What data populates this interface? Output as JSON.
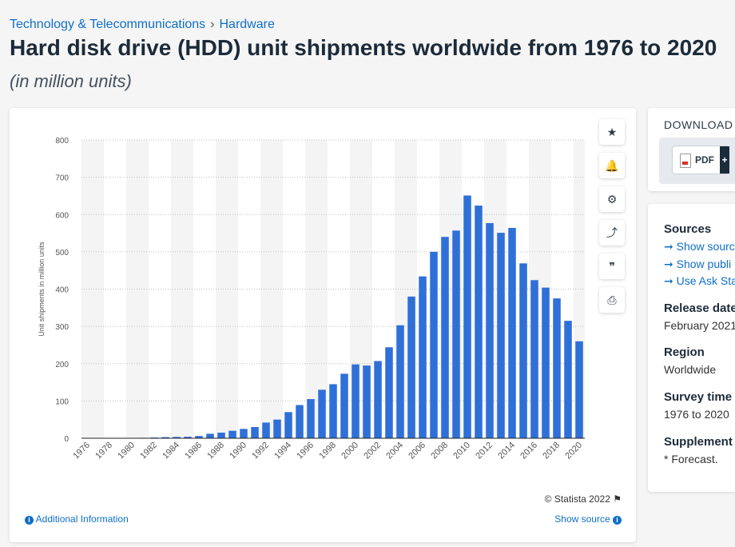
{
  "breadcrumb": {
    "category": "Technology & Telecommunications",
    "separator": "›",
    "subcategory": "Hardware"
  },
  "page_title": "Hard disk drive (HDD) unit shipments worldwide from 1976 to 2020",
  "subtitle": "(in million units)",
  "colors": {
    "bar": "#2f6fd8",
    "link": "#0f6fc6",
    "band": "#f4f4f4",
    "grid": "#bfbfbf"
  },
  "toolbar": [
    {
      "name": "favorite-star-icon",
      "glyph": "★"
    },
    {
      "name": "notification-bell-icon",
      "glyph": "🔔"
    },
    {
      "name": "settings-gear-icon",
      "glyph": "⚙"
    },
    {
      "name": "share-icon",
      "glyph": "⤴"
    },
    {
      "name": "cite-quote-icon",
      "glyph": "❞"
    },
    {
      "name": "print-icon",
      "glyph": "⎙"
    }
  ],
  "credit": "© Statista 2022",
  "additional_info": "Additional Information",
  "show_source": "Show source",
  "download": {
    "heading": "DOWNLOAD",
    "pdf_label": "PDF",
    "plus": "+"
  },
  "sidebar": {
    "sources_heading": "Sources",
    "source_links": [
      "Show sourc",
      "Show publi",
      "Use Ask Sta"
    ],
    "release_heading": "Release date",
    "release_value": "February 2021",
    "region_heading": "Region",
    "region_value": "Worldwide",
    "survey_heading": "Survey time",
    "survey_value": "1976 to 2020",
    "supplement_heading": "Supplement",
    "supplement_value": "* Forecast."
  },
  "chart_data": {
    "type": "bar",
    "title": "",
    "xlabel": "",
    "ylabel": "Unit shipments in million units",
    "ylim": [
      0,
      800
    ],
    "yticks": [
      0,
      100,
      200,
      300,
      400,
      500,
      600,
      700,
      800
    ],
    "grid": true,
    "categories": [
      "1976",
      "1977",
      "1978",
      "1979",
      "1980",
      "1981",
      "1982",
      "1983",
      "1984",
      "1985",
      "1986",
      "1987",
      "1988",
      "1989",
      "1990",
      "1991",
      "1992",
      "1993",
      "1994",
      "1995",
      "1996",
      "1997",
      "1998",
      "1999",
      "2000",
      "2001",
      "2002",
      "2003",
      "2004",
      "2005",
      "2006",
      "2007",
      "2008",
      "2009",
      "2010",
      "2011",
      "2012",
      "2013",
      "2014",
      "2015",
      "2016",
      "2017",
      "2018",
      "2019",
      "2020"
    ],
    "x_tick_labels": [
      "1976",
      "1978",
      "1980",
      "1982",
      "1984",
      "1986",
      "1988",
      "1990",
      "1992",
      "1994",
      "1996",
      "1998",
      "2000",
      "2002",
      "2004",
      "2006",
      "2008",
      "2010",
      "2012",
      "2014",
      "2016",
      "2018",
      "2020"
    ],
    "values": [
      0.1,
      0.2,
      0.3,
      0.5,
      0.8,
      1.2,
      2,
      3,
      3.5,
      4,
      6,
      12,
      15,
      20,
      25,
      30,
      42,
      50,
      70,
      89,
      105,
      130,
      145,
      173,
      198,
      195,
      207,
      244,
      303,
      380,
      434,
      500,
      540,
      557,
      651,
      624,
      577,
      551,
      564,
      469,
      424,
      404,
      375,
      315,
      260
    ]
  }
}
